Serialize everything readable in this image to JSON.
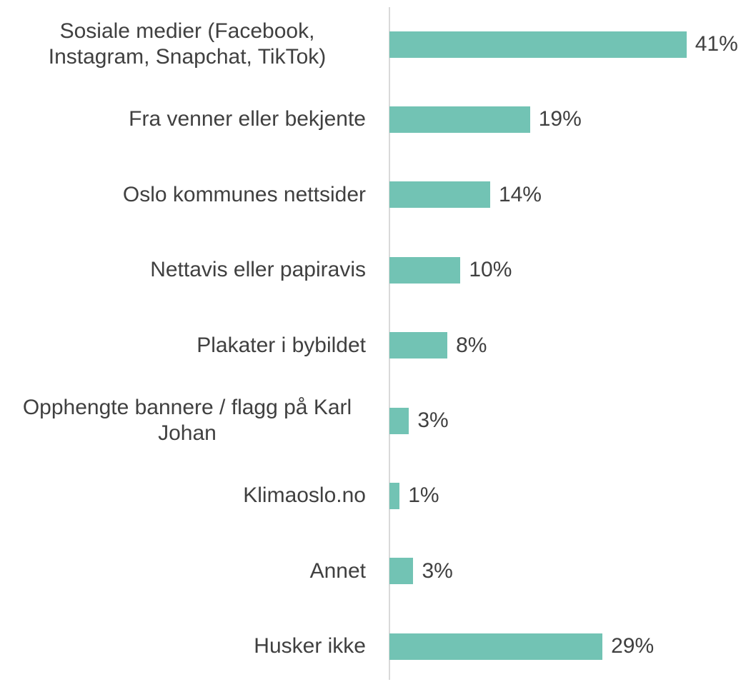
{
  "chart_data": {
    "type": "bar",
    "orientation": "horizontal",
    "categories": [
      "Sosiale medier (Facebook, Instagram, Snapchat, TikTok)",
      "Fra venner eller bekjente",
      "Oslo kommunes nettsider",
      "Nettavis eller papiravis",
      "Plakater i bybildet",
      "Opphengte bannere / flagg på Karl Johan",
      "Klimaoslo.no",
      "Annet",
      "Husker ikke"
    ],
    "values": [
      41,
      19.4,
      13.9,
      9.8,
      8,
      2.7,
      1.4,
      3.3,
      29.4
    ],
    "value_labels": [
      "41%",
      "19%",
      "14%",
      "10%",
      "8%",
      "3%",
      "1%",
      "3%",
      "29%"
    ],
    "color": "#72c3b4",
    "xlim": [
      0,
      50
    ]
  }
}
